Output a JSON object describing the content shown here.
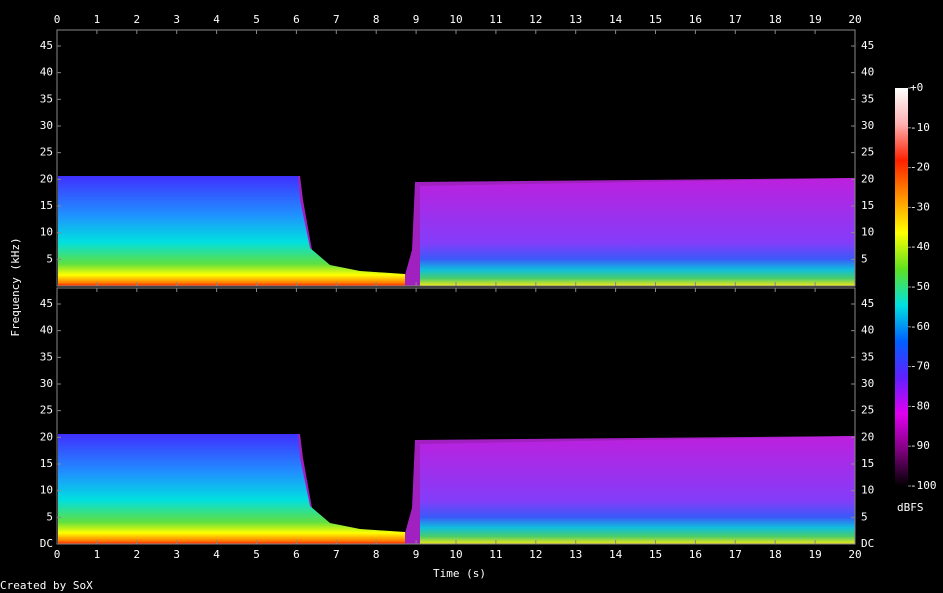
{
  "chart_data": {
    "type": "spectrogram",
    "xlabel": "Time (s)",
    "ylabel": "Frequency (kHz)",
    "xlim": [
      0,
      20
    ],
    "xticks": [
      0,
      1,
      2,
      3,
      4,
      5,
      6,
      7,
      8,
      9,
      10,
      11,
      12,
      13,
      14,
      15,
      16,
      17,
      18,
      19,
      20
    ],
    "ylim": [
      0,
      48
    ],
    "channels": [
      {
        "yticks": [
          5,
          10,
          15,
          20,
          25,
          30,
          35,
          40,
          45
        ]
      },
      {
        "yticks": [
          {
            "value": 0,
            "label": "DC"
          },
          5,
          10,
          15,
          20,
          25,
          30,
          35,
          40,
          45
        ]
      }
    ],
    "colorbar": {
      "label": "dBFS",
      "lim": [
        -100,
        0
      ],
      "ticks": [
        {
          "value": 0,
          "label": "+0"
        },
        -10,
        -20,
        -30,
        -40,
        -50,
        -60,
        -70,
        -80,
        -90,
        -100
      ],
      "colors": [
        "#ffffff",
        "#ffb0b0",
        "#ff2000",
        "#ff9000",
        "#ffff00",
        "#60e020",
        "#00e0e0",
        "#0060ff",
        "#6020ff",
        "#e000f0",
        "#800080",
        "#000000"
      ]
    },
    "credit": "Created by SoX"
  }
}
